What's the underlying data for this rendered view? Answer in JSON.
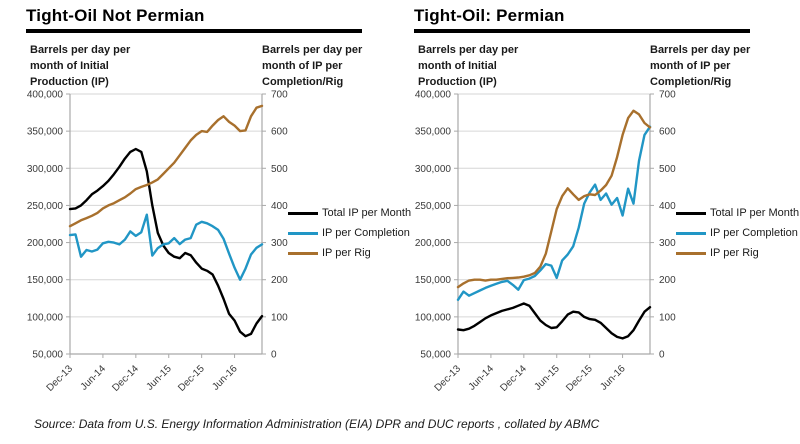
{
  "page": {
    "source_note": "Source: Data from U.S. Energy Information Administration (EIA) DPR and DUC reports , collated by ABMC"
  },
  "palette": {
    "black_series": "#000000",
    "blue_series": "#2196c5",
    "brown_series": "#a8702d",
    "gridline": "#d6d6d6",
    "axis": "#a9a9a9",
    "tick_text": "#3a3a3a"
  },
  "chart_data": [
    {
      "type": "line",
      "title": "Tight-Oil Not Permian",
      "left_axis": {
        "label": "Barrels per day per month of Initial Production (IP)",
        "ticks": [
          "400,000",
          "350,000",
          "300,000",
          "250,000",
          "200,000",
          "150,000",
          "100,000",
          "50,000"
        ],
        "range": [
          50000,
          400000
        ]
      },
      "right_axis": {
        "label": "Barrels per day per month of IP per Completion/Rig",
        "ticks": [
          "700",
          "600",
          "500",
          "400",
          "300",
          "200",
          "100",
          "0"
        ],
        "range": [
          0,
          700
        ]
      },
      "x_ticks": [
        "Dec-13",
        "Jun-14",
        "Dec-14",
        "Jun-15",
        "Dec-15",
        "Jun-16"
      ],
      "x_tick_indices": [
        0,
        6,
        12,
        18,
        24,
        30
      ],
      "x_months": [
        "Dec-13",
        "Jan-14",
        "Feb-14",
        "Mar-14",
        "Apr-14",
        "May-14",
        "Jun-14",
        "Jul-14",
        "Aug-14",
        "Sep-14",
        "Oct-14",
        "Nov-14",
        "Dec-14",
        "Jan-15",
        "Feb-15",
        "Mar-15",
        "Apr-15",
        "May-15",
        "Jun-15",
        "Jul-15",
        "Aug-15",
        "Sep-15",
        "Oct-15",
        "Nov-15",
        "Dec-15",
        "Jan-16",
        "Feb-16",
        "Mar-16",
        "Apr-16",
        "May-16",
        "Jun-16",
        "Jul-16",
        "Aug-16",
        "Sep-16",
        "Oct-16",
        "Nov-16"
      ],
      "series": [
        {
          "name": "Total IP per Month",
          "axis": "left",
          "color": "#000000",
          "values": [
            245000,
            246000,
            250000,
            257000,
            265000,
            270000,
            276000,
            283000,
            292000,
            302000,
            313000,
            322000,
            326000,
            322000,
            296000,
            250000,
            213000,
            196000,
            186000,
            181000,
            179000,
            186000,
            183000,
            173000,
            165000,
            162000,
            157000,
            142000,
            124000,
            104000,
            95000,
            80000,
            74000,
            77000,
            91000,
            101000
          ]
        },
        {
          "name": "IP per Completion",
          "axis": "right",
          "color": "#2196c5",
          "values": [
            320,
            322,
            262,
            280,
            276,
            281,
            298,
            302,
            300,
            295,
            308,
            330,
            318,
            328,
            375,
            265,
            285,
            295,
            298,
            312,
            296,
            308,
            312,
            348,
            356,
            352,
            344,
            334,
            310,
            270,
            232,
            200,
            230,
            268,
            286,
            295
          ]
        },
        {
          "name": "IP per Rig",
          "axis": "right",
          "color": "#a8702d",
          "values": [
            344,
            352,
            360,
            366,
            372,
            380,
            392,
            400,
            406,
            414,
            422,
            432,
            444,
            450,
            455,
            462,
            470,
            485,
            500,
            515,
            535,
            555,
            575,
            590,
            600,
            598,
            615,
            630,
            640,
            625,
            615,
            600,
            602,
            640,
            663,
            668
          ]
        }
      ]
    },
    {
      "type": "line",
      "title": "Tight-Oil: Permian",
      "left_axis": {
        "label": "Barrels per day per month of Initial Production (IP)",
        "ticks": [
          "400,000",
          "350,000",
          "300,000",
          "250,000",
          "200,000",
          "150,000",
          "100,000",
          "50,000"
        ],
        "range": [
          50000,
          400000
        ]
      },
      "right_axis": {
        "label": "Barrels per day per month of IP per Completion/Rig",
        "ticks": [
          "700",
          "600",
          "500",
          "400",
          "300",
          "200",
          "100",
          "0"
        ],
        "range": [
          0,
          700
        ]
      },
      "x_ticks": [
        "Dec-13",
        "Jun-14",
        "Dec-14",
        "Jun-15",
        "Dec-15",
        "Jun-16"
      ],
      "x_tick_indices": [
        0,
        6,
        12,
        18,
        24,
        30
      ],
      "x_months": [
        "Dec-13",
        "Jan-14",
        "Feb-14",
        "Mar-14",
        "Apr-14",
        "May-14",
        "Jun-14",
        "Jul-14",
        "Aug-14",
        "Sep-14",
        "Oct-14",
        "Nov-14",
        "Dec-14",
        "Jan-15",
        "Feb-15",
        "Mar-15",
        "Apr-15",
        "May-15",
        "Jun-15",
        "Jul-15",
        "Aug-15",
        "Sep-15",
        "Oct-15",
        "Nov-15",
        "Dec-15",
        "Jan-16",
        "Feb-16",
        "Mar-16",
        "Apr-16",
        "May-16",
        "Jun-16",
        "Jul-16",
        "Aug-16",
        "Sep-16",
        "Oct-16",
        "Nov-16"
      ],
      "series": [
        {
          "name": "Total IP per Month",
          "axis": "left",
          "color": "#000000",
          "values": [
            83000,
            82000,
            84000,
            88000,
            93000,
            98000,
            102000,
            105000,
            108000,
            110000,
            112000,
            115000,
            118000,
            115000,
            105000,
            95000,
            89000,
            85000,
            86000,
            94000,
            103000,
            107000,
            106000,
            100000,
            97000,
            96000,
            92000,
            85000,
            78000,
            73000,
            71000,
            74000,
            82000,
            95000,
            107000,
            113000
          ]
        },
        {
          "name": "IP per Completion",
          "axis": "right",
          "color": "#2196c5",
          "values": [
            146,
            168,
            157,
            164,
            171,
            178,
            184,
            189,
            194,
            197,
            186,
            173,
            199,
            203,
            210,
            225,
            242,
            238,
            205,
            252,
            268,
            290,
            340,
            405,
            435,
            456,
            415,
            432,
            402,
            420,
            373,
            445,
            405,
            520,
            590,
            612
          ]
        },
        {
          "name": "IP per Rig",
          "axis": "right",
          "color": "#a8702d",
          "values": [
            180,
            190,
            198,
            200,
            200,
            198,
            200,
            200,
            202,
            204,
            205,
            206,
            208,
            212,
            218,
            235,
            270,
            330,
            390,
            425,
            446,
            430,
            415,
            425,
            430,
            428,
            440,
            455,
            480,
            530,
            590,
            635,
            655,
            645,
            622,
            610
          ]
        }
      ]
    }
  ]
}
